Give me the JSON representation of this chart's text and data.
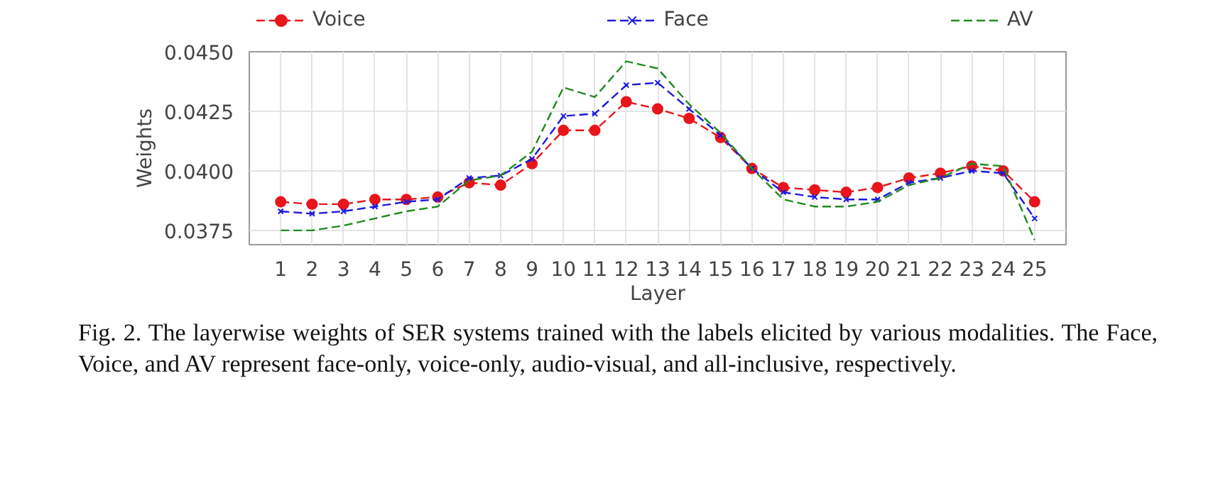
{
  "chart_data": {
    "type": "line",
    "xlabel": "Layer",
    "ylabel": "Weights",
    "x": [
      1,
      2,
      3,
      4,
      5,
      6,
      7,
      8,
      9,
      10,
      11,
      12,
      13,
      14,
      15,
      16,
      17,
      18,
      19,
      20,
      21,
      22,
      23,
      24,
      25
    ],
    "xlim": [
      0,
      26
    ],
    "xticks": [
      1,
      2,
      3,
      4,
      5,
      6,
      7,
      8,
      9,
      10,
      11,
      12,
      13,
      14,
      15,
      16,
      17,
      18,
      19,
      20,
      21,
      22,
      23,
      24,
      25
    ],
    "ylim": [
      0.0369,
      0.045
    ],
    "yticks": [
      {
        "value": 0.0375,
        "label": "0.0375"
      },
      {
        "value": 0.04,
        "label": "0.0400"
      },
      {
        "value": 0.0425,
        "label": "0.0425"
      },
      {
        "value": 0.045,
        "label": "0.0450"
      }
    ],
    "grid": true,
    "legend": "top",
    "line_style": "dashed",
    "series": [
      {
        "name": "Voice",
        "color": "#e8151b",
        "marker": "circle",
        "values": [
          0.0387,
          0.0386,
          0.0386,
          0.0388,
          0.0388,
          0.0389,
          0.0395,
          0.0394,
          0.0403,
          0.0417,
          0.0417,
          0.0429,
          0.0426,
          0.0422,
          0.0414,
          0.0401,
          0.0393,
          0.0392,
          0.0391,
          0.0393,
          0.0397,
          0.0399,
          0.0402,
          0.04,
          0.0387
        ]
      },
      {
        "name": "Face",
        "color": "#1a1adf",
        "marker": "cross",
        "values": [
          0.0383,
          0.0382,
          0.0383,
          0.0385,
          0.0387,
          0.0388,
          0.0397,
          0.0398,
          0.0405,
          0.0423,
          0.0424,
          0.0436,
          0.0437,
          0.0426,
          0.0415,
          0.0401,
          0.0391,
          0.0389,
          0.0388,
          0.0388,
          0.0395,
          0.0397,
          0.04,
          0.0399,
          0.038
        ]
      },
      {
        "name": "AV",
        "color": "#1f8a1f",
        "marker": "none",
        "values": [
          0.0375,
          0.0375,
          0.0377,
          0.038,
          0.0383,
          0.0385,
          0.0396,
          0.0398,
          0.0408,
          0.0435,
          0.0431,
          0.0446,
          0.0443,
          0.0428,
          0.0416,
          0.0401,
          0.0388,
          0.0385,
          0.0385,
          0.0387,
          0.0394,
          0.0397,
          0.0403,
          0.0402,
          0.0371
        ]
      }
    ],
    "annotations": [
      "Fig. 2.  The layerwise weights of SER systems trained with the labels elicited by various modalities. The Face, Voice, and AV represent face-only, voice-only, audio-visual, and all-inclusive, respectively."
    ]
  }
}
